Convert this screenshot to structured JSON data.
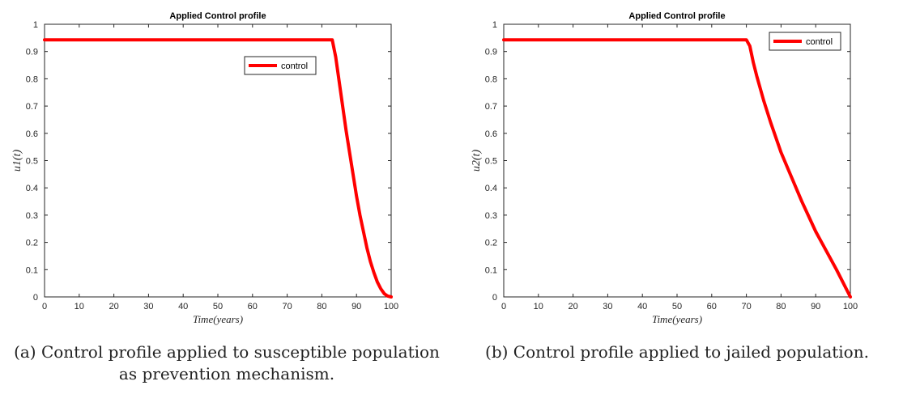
{
  "chart_data": [
    {
      "type": "line",
      "title": "Applied Control profile",
      "xlabel": "Time(years)",
      "ylabel": "u1(t)",
      "xlim": [
        0,
        100
      ],
      "ylim": [
        0,
        1
      ],
      "xticks": [
        "0",
        "10",
        "20",
        "30",
        "40",
        "50",
        "60",
        "70",
        "80",
        "90",
        "100"
      ],
      "yticks": [
        "0",
        "0.1",
        "0.2",
        "0.3",
        "0.4",
        "0.5",
        "0.6",
        "0.7",
        "0.8",
        "0.9",
        "1"
      ],
      "legend_position": "top-right",
      "grid": false,
      "series": [
        {
          "name": "control",
          "color": "#ff0000",
          "x": [
            0,
            10,
            20,
            30,
            40,
            50,
            60,
            70,
            80,
            83,
            84,
            85,
            86,
            87,
            88,
            89,
            90,
            91,
            92,
            93,
            94,
            95,
            96,
            97,
            98,
            99,
            100
          ],
          "y": [
            0.943,
            0.943,
            0.943,
            0.943,
            0.943,
            0.943,
            0.943,
            0.943,
            0.943,
            0.943,
            0.88,
            0.79,
            0.7,
            0.61,
            0.53,
            0.45,
            0.37,
            0.3,
            0.24,
            0.18,
            0.13,
            0.09,
            0.055,
            0.03,
            0.012,
            0.003,
            0.0
          ]
        }
      ]
    },
    {
      "type": "line",
      "title": "Applied Control profile",
      "xlabel": "Time(years)",
      "ylabel": "u2(t)",
      "xlim": [
        0,
        100
      ],
      "ylim": [
        0,
        1
      ],
      "xticks": [
        "0",
        "10",
        "20",
        "30",
        "40",
        "50",
        "60",
        "70",
        "80",
        "90",
        "100"
      ],
      "yticks": [
        "0",
        "0.1",
        "0.2",
        "0.3",
        "0.4",
        "0.5",
        "0.6",
        "0.7",
        "0.8",
        "0.9",
        "1"
      ],
      "legend_position": "top-right",
      "grid": false,
      "series": [
        {
          "name": "control",
          "color": "#ff0000",
          "x": [
            0,
            10,
            20,
            30,
            40,
            50,
            60,
            70,
            71,
            72,
            73,
            75,
            77,
            80,
            83,
            86,
            90,
            93,
            96,
            100
          ],
          "y": [
            0.943,
            0.943,
            0.943,
            0.943,
            0.943,
            0.943,
            0.943,
            0.943,
            0.92,
            0.86,
            0.81,
            0.72,
            0.64,
            0.53,
            0.44,
            0.35,
            0.24,
            0.17,
            0.1,
            0.0
          ]
        }
      ]
    }
  ],
  "captions": [
    "(a) Control profile applied to susceptible population as prevention mechanism.",
    "(b)  Control profile applied to jailed population."
  ]
}
